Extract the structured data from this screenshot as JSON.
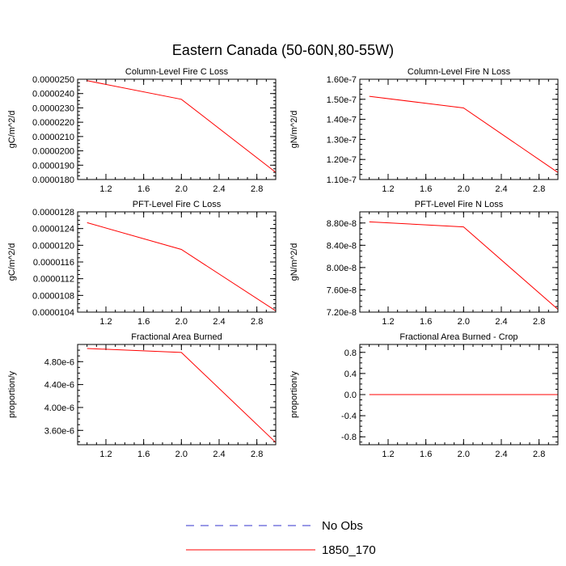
{
  "title": "Eastern Canada (50-60N,80-55W)",
  "legend": [
    {
      "label": "No Obs",
      "color": "#3333cc",
      "dash": true
    },
    {
      "label": "1850_170",
      "color": "#ff0000",
      "dash": false
    }
  ],
  "chart_data": [
    {
      "type": "line",
      "title": "Column-Level Fire C Loss",
      "ylabel": "gC/m^2/d",
      "xlim": [
        0.9,
        3.0
      ],
      "ylim": [
        1.8e-05,
        2.5e-05
      ],
      "x_ticks": [
        1.2,
        1.6,
        2.0,
        2.4,
        2.8
      ],
      "x_tick_labels": [
        "1.2",
        "1.6",
        "2.0",
        "2.4",
        "2.8"
      ],
      "y_ticks": [
        1.8e-05,
        1.9e-05,
        2e-05,
        2.1e-05,
        2.2e-05,
        2.3e-05,
        2.4e-05,
        2.5e-05
      ],
      "y_tick_labels": [
        "0.0000180",
        "0.0000190",
        "0.0000200",
        "0.0000210",
        "0.0000220",
        "0.0000230",
        "0.0000240",
        "0.0000250"
      ],
      "series": [
        {
          "name": "1850_170",
          "x": [
            1,
            2,
            3
          ],
          "values": [
            2.49e-05,
            2.36e-05,
            1.85e-05
          ]
        }
      ]
    },
    {
      "type": "line",
      "title": "Column-Level Fire N Loss",
      "ylabel": "gN/m^2/d",
      "xlim": [
        0.9,
        3.0
      ],
      "ylim": [
        1.1e-07,
        1.6e-07
      ],
      "x_ticks": [
        1.2,
        1.6,
        2.0,
        2.4,
        2.8
      ],
      "x_tick_labels": [
        "1.2",
        "1.6",
        "2.0",
        "2.4",
        "2.8"
      ],
      "y_ticks": [
        1.1e-07,
        1.2e-07,
        1.3e-07,
        1.4e-07,
        1.5e-07,
        1.6e-07
      ],
      "y_tick_labels": [
        "1.10e-7",
        "1.20e-7",
        "1.30e-7",
        "1.40e-7",
        "1.50e-7",
        "1.60e-7"
      ],
      "series": [
        {
          "name": "1850_170",
          "x": [
            1,
            2,
            3
          ],
          "values": [
            1.515e-07,
            1.457e-07,
            1.135e-07
          ]
        }
      ]
    },
    {
      "type": "line",
      "title": "PFT-Level Fire C Loss",
      "ylabel": "gC/m^2/d",
      "xlim": [
        0.9,
        3.0
      ],
      "ylim": [
        1.04e-05,
        1.28e-05
      ],
      "x_ticks": [
        1.2,
        1.6,
        2.0,
        2.4,
        2.8
      ],
      "x_tick_labels": [
        "1.2",
        "1.6",
        "2.0",
        "2.4",
        "2.8"
      ],
      "y_ticks": [
        1.04e-05,
        1.08e-05,
        1.12e-05,
        1.16e-05,
        1.2e-05,
        1.24e-05,
        1.28e-05
      ],
      "y_tick_labels": [
        "0.0000104",
        "0.0000108",
        "0.0000112",
        "0.0000116",
        "0.0000120",
        "0.0000124",
        "0.0000128"
      ],
      "series": [
        {
          "name": "1850_170",
          "x": [
            1,
            2,
            3
          ],
          "values": [
            1.254e-05,
            1.19e-05,
            1.043e-05
          ]
        }
      ]
    },
    {
      "type": "line",
      "title": "PFT-Level Fire N Loss",
      "ylabel": "gN/m^2/d",
      "xlim": [
        0.9,
        3.0
      ],
      "ylim": [
        7.2e-08,
        9e-08
      ],
      "x_ticks": [
        1.2,
        1.6,
        2.0,
        2.4,
        2.8
      ],
      "x_tick_labels": [
        "1.2",
        "1.6",
        "2.0",
        "2.4",
        "2.8"
      ],
      "y_ticks": [
        7.2e-08,
        7.6e-08,
        8e-08,
        8.4e-08,
        8.8e-08
      ],
      "y_tick_labels": [
        "7.20e-8",
        "7.60e-8",
        "8.00e-8",
        "8.40e-8",
        "8.80e-8"
      ],
      "series": [
        {
          "name": "1850_170",
          "x": [
            1,
            2,
            3
          ],
          "values": [
            8.82e-08,
            8.73e-08,
            7.25e-08
          ]
        }
      ]
    },
    {
      "type": "line",
      "title": "Fractional Area Burned",
      "ylabel": "proportion/y",
      "xlim": [
        0.9,
        3.0
      ],
      "ylim": [
        3.35e-06,
        5.1e-06
      ],
      "x_ticks": [
        1.2,
        1.6,
        2.0,
        2.4,
        2.8
      ],
      "x_tick_labels": [
        "1.2",
        "1.6",
        "2.0",
        "2.4",
        "2.8"
      ],
      "y_ticks": [
        3.6e-06,
        4e-06,
        4.4e-06,
        4.8e-06
      ],
      "y_tick_labels": [
        "3.60e-6",
        "4.00e-6",
        "4.40e-6",
        "4.80e-6"
      ],
      "series": [
        {
          "name": "1850_170",
          "x": [
            1,
            2,
            3
          ],
          "values": [
            5.03e-06,
            4.96e-06,
            3.39e-06
          ]
        }
      ]
    },
    {
      "type": "line",
      "title": "Fractional Area Burned - Crop",
      "ylabel": "proportion/y",
      "xlim": [
        0.9,
        3.0
      ],
      "ylim": [
        -0.95,
        0.95
      ],
      "x_ticks": [
        1.2,
        1.6,
        2.0,
        2.4,
        2.8
      ],
      "x_tick_labels": [
        "1.2",
        "1.6",
        "2.0",
        "2.4",
        "2.8"
      ],
      "y_ticks": [
        -0.8,
        -0.4,
        0.0,
        0.4,
        0.8
      ],
      "y_tick_labels": [
        "-0.8",
        "-0.4",
        "0.0",
        "0.4",
        "0.8"
      ],
      "series": [
        {
          "name": "1850_170",
          "x": [
            1,
            2,
            3
          ],
          "values": [
            0,
            0,
            0
          ]
        }
      ]
    }
  ]
}
